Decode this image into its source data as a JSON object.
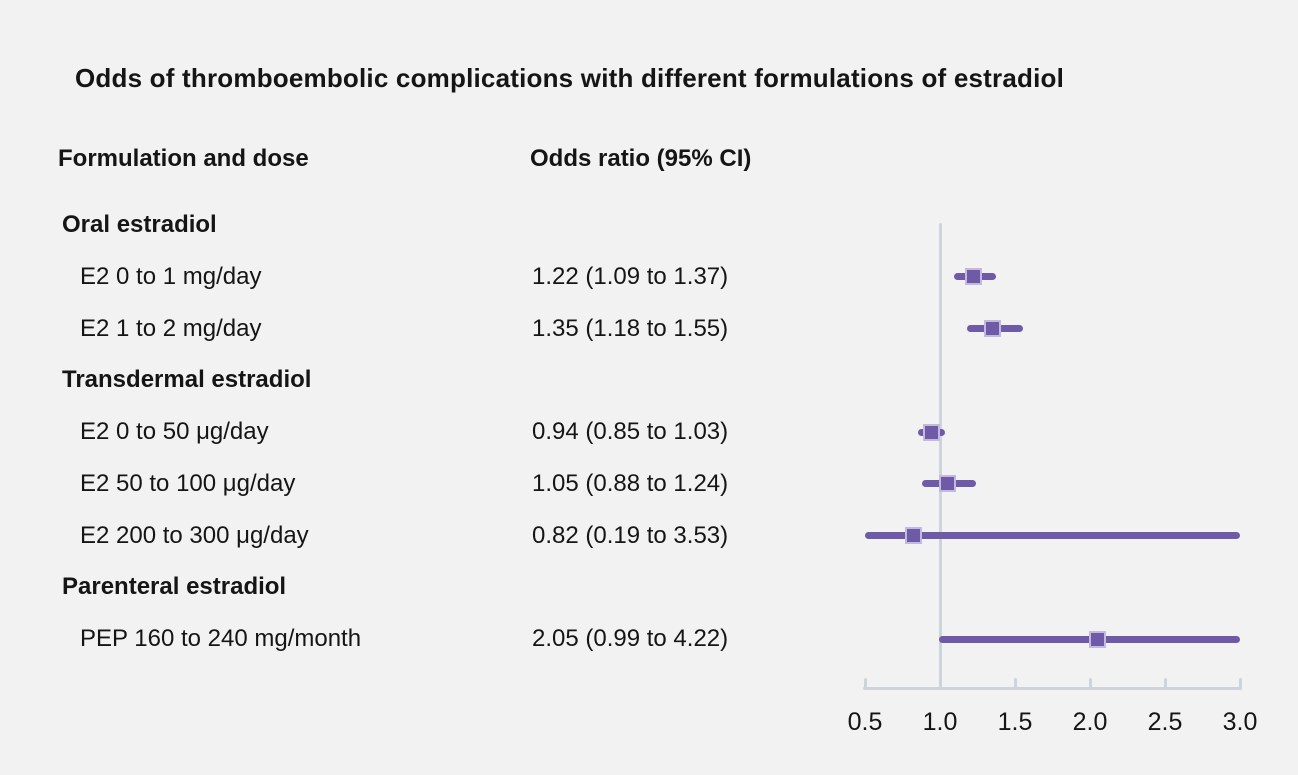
{
  "title": "Odds of thromboembolic complications with different formulations of estradiol",
  "columns": {
    "formulation": "Formulation and dose",
    "odds_ratio": "Odds ratio (95% CI)"
  },
  "chart_data": {
    "type": "scatter",
    "variant": "forest-plot",
    "title": "Odds of thromboembolic complications with different formulations of estradiol",
    "xlabel": "",
    "ylabel": "",
    "legend": null,
    "grid": false,
    "x_axis": {
      "min": 0.5,
      "max": 3.0,
      "ticks": [
        0.5,
        1.0,
        1.5,
        2.0,
        2.5,
        3.0
      ],
      "tick_labels": [
        "0.5",
        "1.0",
        "1.5",
        "2.0",
        "2.5",
        "3.0"
      ],
      "reference_line": 1.0
    },
    "groups": [
      {
        "label": "Oral estradiol",
        "rows": [
          {
            "label": "E2 0 to 1 mg/day",
            "display": "1.22 (1.09 to 1.37)",
            "or": 1.22,
            "ci_low": 1.09,
            "ci_high": 1.37
          },
          {
            "label": "E2 1 to 2 mg/day",
            "display": "1.35 (1.18 to 1.55)",
            "or": 1.35,
            "ci_low": 1.18,
            "ci_high": 1.55
          }
        ]
      },
      {
        "label": "Transdermal estradiol",
        "rows": [
          {
            "label": "E2 0 to 50 μg/day",
            "display": "0.94 (0.85 to 1.03)",
            "or": 0.94,
            "ci_low": 0.85,
            "ci_high": 1.03
          },
          {
            "label": "E2 50 to 100 μg/day",
            "display": "1.05 (0.88 to 1.24)",
            "or": 1.05,
            "ci_low": 0.88,
            "ci_high": 1.24
          },
          {
            "label": "E2 200 to 300 μg/day",
            "display": "0.82 (0.19 to 3.53)",
            "or": 0.82,
            "ci_low": 0.19,
            "ci_high": 3.53
          }
        ]
      },
      {
        "label": "Parenteral estradiol",
        "rows": [
          {
            "label": "PEP 160 to 240 mg/month",
            "display": "2.05 (0.99 to 4.22)",
            "or": 2.05,
            "ci_low": 0.99,
            "ci_high": 4.22
          }
        ]
      }
    ]
  },
  "colors": {
    "background": "#f2f2f2",
    "text": "#151515",
    "marker": "#6e5aa7",
    "marker_border": "#c3b8de",
    "axis": "#ced4dc"
  }
}
